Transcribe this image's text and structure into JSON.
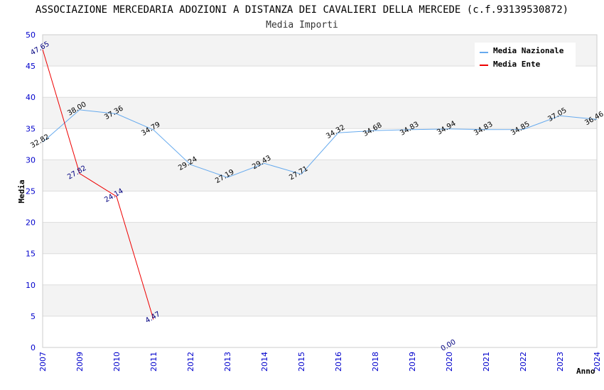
{
  "chart_data": {
    "type": "line",
    "title": "ASSOCIAZIONE MERCEDARIA ADOZIONI A DISTANZA DEI CAVALIERI DELLA MERCEDE (c.f.93139530872)",
    "subtitle": "Media Importi",
    "xlabel": "Anno",
    "ylabel": "Media",
    "ylim": [
      0,
      50
    ],
    "yticks": [
      "0",
      "5",
      "10",
      "15",
      "20",
      "25",
      "30",
      "35",
      "40",
      "45",
      "50"
    ],
    "categories": [
      "2007",
      "2009",
      "2010",
      "2011",
      "2012",
      "2013",
      "2014",
      "2015",
      "2016",
      "2018",
      "2019",
      "2020",
      "2021",
      "2022",
      "2023",
      "2024"
    ],
    "legend_position": "top-right",
    "series": [
      {
        "name": "Media Nazionale",
        "color": "#66aaee",
        "label_color": "#000000",
        "values": [
          32.82,
          38.0,
          37.36,
          34.79,
          29.24,
          27.19,
          29.43,
          27.71,
          34.32,
          34.68,
          34.83,
          34.94,
          34.83,
          34.85,
          37.05,
          36.46
        ],
        "labels": [
          "32.82",
          "38.00",
          "37.36",
          "34.79",
          "29.24",
          "27.19",
          "29.43",
          "27.71",
          "34.32",
          "34.68",
          "34.83",
          "34.94",
          "34.83",
          "34.85",
          "37.05",
          "36.46"
        ]
      },
      {
        "name": "Media Ente",
        "color": "#ee0000",
        "label_color": "#000080",
        "values": [
          47.65,
          27.82,
          24.14,
          4.47,
          null,
          null,
          null,
          null,
          null,
          null,
          null,
          0.0,
          null,
          null,
          null,
          null
        ],
        "labels": [
          "47.65",
          "27.82",
          "24.14",
          "4.47",
          null,
          null,
          null,
          null,
          null,
          null,
          null,
          "0.00",
          null,
          null,
          null,
          null
        ]
      }
    ]
  }
}
